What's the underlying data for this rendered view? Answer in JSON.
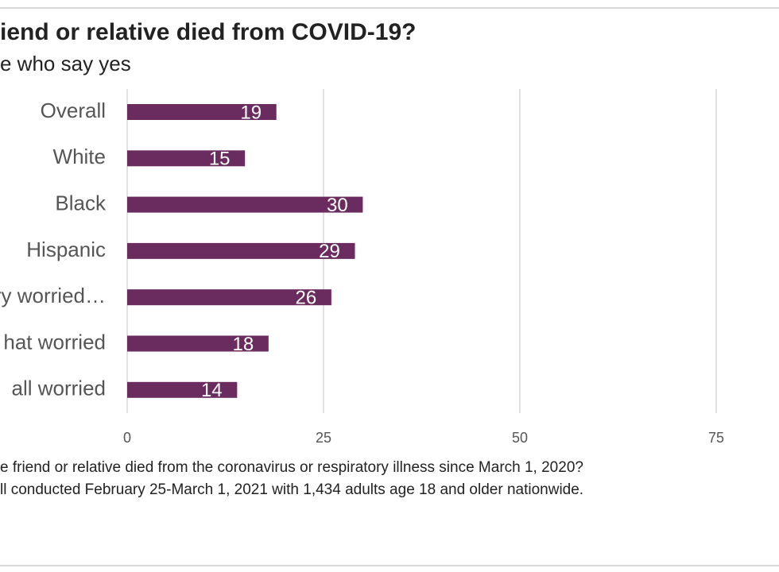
{
  "chart_data": {
    "type": "bar",
    "orientation": "horizontal",
    "title": "iend or relative died from COVID-19?",
    "subtitle": "e who say yes",
    "categories": [
      "Overall",
      "White",
      "Black",
      "Hispanic",
      "ery worried…",
      "hat worried",
      "all worried"
    ],
    "values": [
      19,
      15,
      30,
      29,
      26,
      18,
      14
    ],
    "color": "#6a2c5e",
    "xlim": [
      0,
      83
    ],
    "xticks": [
      0,
      25,
      50,
      75
    ],
    "grid": true,
    "notes": [
      "e friend or relative died from the coronavirus or respiratory illness since March 1, 2020?",
      "ll conducted February 25-March 1, 2021 with 1,434 adults age 18 and older nationwide."
    ]
  }
}
